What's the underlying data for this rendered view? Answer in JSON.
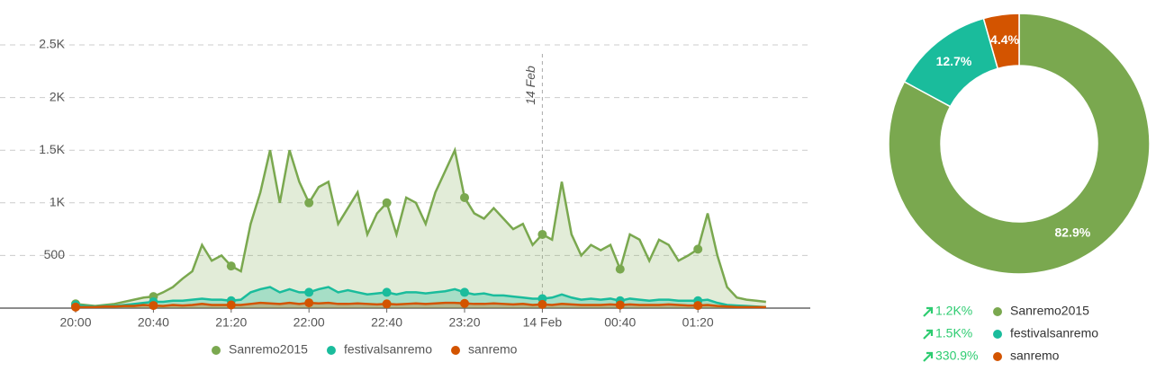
{
  "chart_data": [
    {
      "type": "area",
      "categories": [
        "20:00",
        null,
        null,
        null,
        null,
        null,
        null,
        null,
        "20:40",
        null,
        null,
        null,
        null,
        null,
        null,
        null,
        "21:20",
        null,
        null,
        null,
        null,
        null,
        null,
        null,
        "22:00",
        null,
        null,
        null,
        null,
        null,
        null,
        null,
        "22:40",
        null,
        null,
        null,
        null,
        null,
        null,
        null,
        "23:20",
        null,
        null,
        null,
        null,
        null,
        null,
        null,
        "14 Feb",
        null,
        null,
        null,
        null,
        null,
        null,
        null,
        "00:40",
        null,
        null,
        null,
        null,
        null,
        null,
        null,
        "01:20",
        null,
        null,
        null,
        null,
        null,
        null,
        null
      ],
      "series": [
        {
          "name": "Sanremo2015",
          "color": "#7aa84f",
          "values": [
            40,
            30,
            20,
            30,
            40,
            60,
            80,
            100,
            110,
            150,
            200,
            280,
            350,
            600,
            450,
            500,
            400,
            350,
            800,
            1100,
            1500,
            1000,
            1500,
            1200,
            1000,
            1150,
            1200,
            800,
            950,
            1100,
            700,
            900,
            1000,
            700,
            1050,
            1000,
            800,
            1100,
            1300,
            1500,
            1050,
            900,
            850,
            950,
            850,
            750,
            800,
            600,
            700,
            650,
            1200,
            700,
            500,
            600,
            550,
            600,
            370,
            700,
            650,
            450,
            650,
            600,
            450,
            500,
            560,
            900,
            500,
            200,
            100,
            80,
            70,
            60
          ]
        },
        {
          "name": "festivalsanremo",
          "color": "#1abc9c",
          "values": [
            30,
            20,
            15,
            20,
            20,
            30,
            40,
            50,
            60,
            60,
            70,
            70,
            80,
            90,
            80,
            80,
            70,
            80,
            150,
            180,
            200,
            150,
            180,
            150,
            150,
            180,
            200,
            150,
            170,
            150,
            130,
            140,
            150,
            130,
            150,
            150,
            140,
            150,
            160,
            180,
            150,
            130,
            140,
            120,
            120,
            110,
            100,
            90,
            90,
            100,
            130,
            100,
            80,
            90,
            80,
            90,
            70,
            90,
            80,
            70,
            80,
            80,
            70,
            70,
            70,
            80,
            50,
            30,
            25,
            20,
            15,
            10
          ]
        },
        {
          "name": "sanremo",
          "color": "#d35400",
          "values": [
            10,
            10,
            10,
            15,
            15,
            20,
            20,
            30,
            25,
            20,
            30,
            25,
            30,
            40,
            30,
            30,
            30,
            30,
            40,
            50,
            45,
            40,
            50,
            40,
            50,
            45,
            50,
            40,
            40,
            45,
            40,
            35,
            40,
            35,
            40,
            45,
            40,
            45,
            50,
            50,
            45,
            40,
            40,
            45,
            40,
            35,
            40,
            30,
            35,
            30,
            40,
            35,
            30,
            30,
            30,
            35,
            30,
            35,
            30,
            30,
            30,
            35,
            30,
            25,
            25,
            30,
            20,
            15,
            10,
            10,
            10,
            10
          ]
        }
      ],
      "annotation": "14 Feb",
      "ylim": [
        0,
        2500
      ],
      "yticks": [
        500,
        {
          "value": 1000,
          "label": "1K"
        },
        {
          "value": 1500,
          "label": "1.5K"
        },
        {
          "value": 2000,
          "label": "2K"
        },
        {
          "value": 2500,
          "label": "2.5K"
        }
      ],
      "grid": true
    },
    {
      "type": "donut",
      "categories": [
        "Sanremo2015",
        "festivalsanremo",
        "sanremo"
      ],
      "values": [
        82.9,
        12.7,
        4.4
      ],
      "value_labels": [
        "82.9%",
        "12.7%",
        "4.4%"
      ],
      "colors": [
        "#7aa84f",
        "#1abc9c",
        "#d35400"
      ],
      "changes": [
        "1.2K%",
        "1.5K%",
        "330.9%"
      ]
    }
  ]
}
